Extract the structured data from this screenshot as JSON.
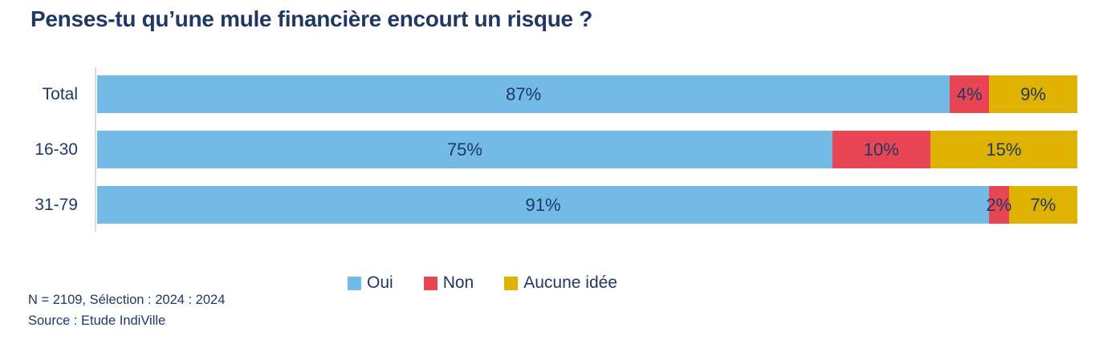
{
  "title": "Penses-tu qu’une mule financière encourt un risque ?",
  "chart_data": {
    "type": "bar",
    "orientation": "horizontal",
    "stacked": true,
    "categories": [
      "Total",
      "16-30",
      "31-79"
    ],
    "series": [
      {
        "name": "Oui",
        "color": "#74BAE7",
        "values": [
          87,
          75,
          91
        ]
      },
      {
        "name": "Non",
        "color": "#E84655",
        "values": [
          4,
          10,
          2
        ]
      },
      {
        "name": "Aucune idée",
        "color": "#DFB100",
        "values": [
          9,
          15,
          7
        ]
      }
    ],
    "value_suffix": "%",
    "xlim": [
      0,
      100
    ],
    "legend_position": "bottom",
    "grid": false
  },
  "footer": {
    "line1": "N = 2109, Sélection : 2024 : 2024",
    "line2": "Source : Etude IndiVille"
  },
  "colors": {
    "text": "#1F3864",
    "axis_line": "#D6DCE4",
    "background": "#FFFFFF"
  }
}
